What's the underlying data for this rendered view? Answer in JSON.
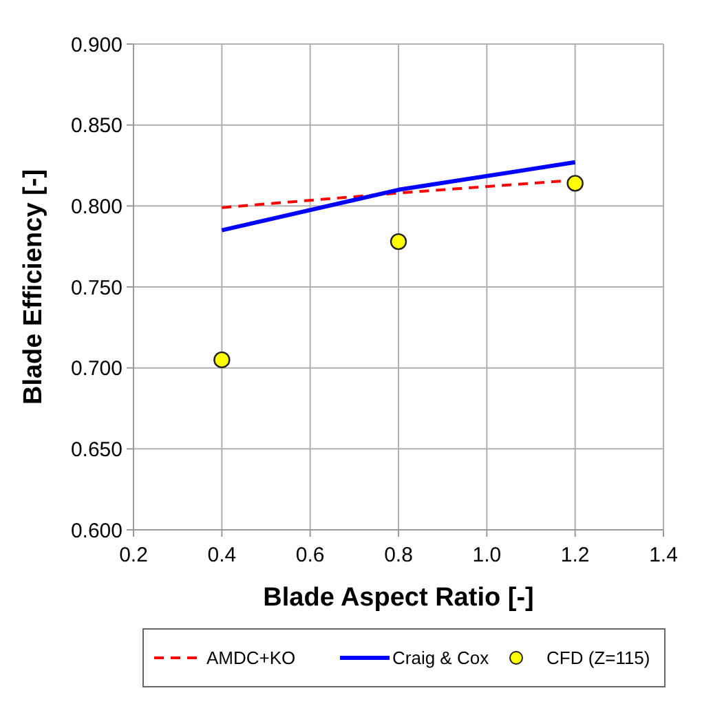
{
  "chart_data": {
    "type": "line",
    "xlabel": "Blade Aspect Ratio [-]",
    "ylabel": "Blade Efficiency [-]",
    "xlim": [
      0.2,
      1.4
    ],
    "xticks": [
      {
        "value": 0.2,
        "label": "0.2"
      },
      {
        "value": 0.4,
        "label": "0.4"
      },
      {
        "value": 0.6,
        "label": "0.6"
      },
      {
        "value": 0.8,
        "label": "0.8"
      },
      {
        "value": 1.0,
        "label": "1.0"
      },
      {
        "value": 1.2,
        "label": "1.2"
      },
      {
        "value": 1.4,
        "label": "1.4"
      }
    ],
    "ylim": [
      0.6,
      0.9
    ],
    "yticks": [
      {
        "value": 0.6,
        "label": "0.600"
      },
      {
        "value": 0.65,
        "label": "0.650"
      },
      {
        "value": 0.7,
        "label": "0.700"
      },
      {
        "value": 0.75,
        "label": "0.750"
      },
      {
        "value": 0.8,
        "label": "0.800"
      },
      {
        "value": 0.85,
        "label": "0.850"
      },
      {
        "value": 0.9,
        "label": "0.900"
      }
    ],
    "grid": true,
    "legend": "bottom",
    "series": [
      {
        "name": "AMDC+KO",
        "type": "line",
        "color": "#ff0000",
        "line_style": "dashed",
        "marker": "none",
        "x": [
          0.4,
          0.8,
          1.2
        ],
        "values": [
          0.799,
          0.808,
          0.816
        ]
      },
      {
        "name": "Craig & Cox",
        "type": "line",
        "color": "#0000ff",
        "line_style": "solid",
        "marker": "none",
        "x": [
          0.4,
          0.8,
          1.2
        ],
        "values": [
          0.785,
          0.81,
          0.827
        ]
      },
      {
        "name": "CFD (Z=115)",
        "type": "scatter",
        "color": "#ffff00",
        "marker": "circle",
        "x": [
          0.4,
          0.8,
          1.2
        ],
        "values": [
          0.705,
          0.778,
          0.814
        ]
      }
    ]
  }
}
